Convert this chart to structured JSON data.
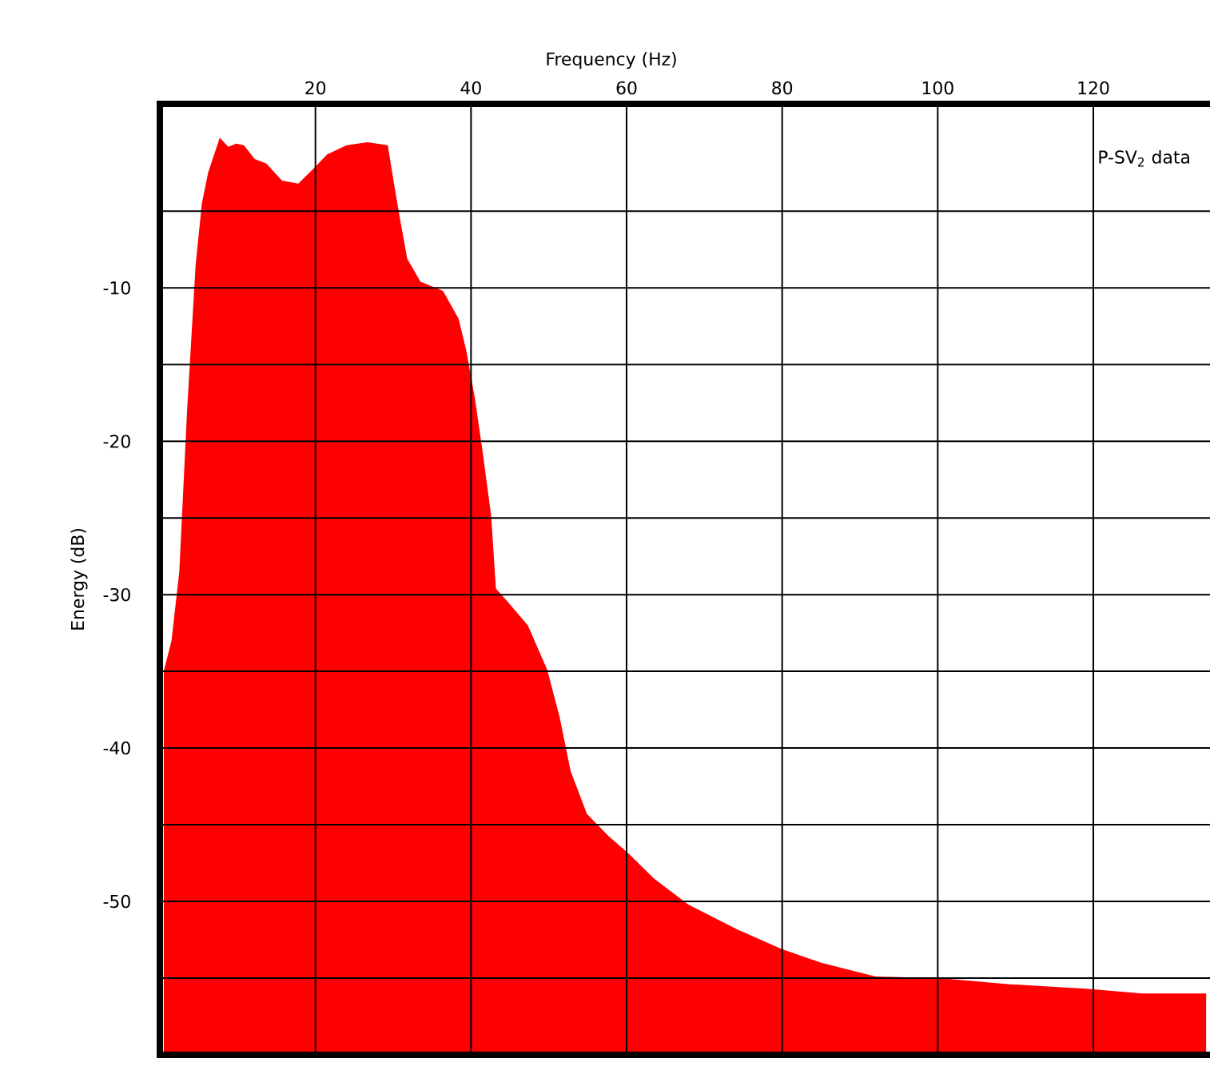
{
  "chart_data": {
    "type": "area",
    "xlabel": "Frequency (Hz)",
    "ylabel": "Energy (dB)",
    "annotations": [
      "P-SV$_{2}$ data"
    ],
    "color": "#ff0000",
    "xlim": [
      0,
      135
    ],
    "ylim": [
      -60,
      2
    ],
    "xticks": [
      20,
      40,
      60,
      80,
      100,
      120
    ],
    "yticks": [
      {
        "value": -55,
        "label": null
      },
      -50,
      {
        "value": -45,
        "label": null
      },
      -40,
      {
        "value": -35,
        "label": null
      },
      -30,
      {
        "value": -25,
        "label": null
      },
      -20,
      {
        "value": -15,
        "label": null
      },
      -10,
      {
        "value": -5,
        "label": null
      }
    ],
    "grid": true,
    "x": [
      0.5,
      1.5,
      2.5,
      3.5,
      4.6,
      5.4,
      6.2,
      7.7,
      8.8,
      9.8,
      10.8,
      12.2,
      13.7,
      15.7,
      17.8,
      19.8,
      21.5,
      24,
      26.7,
      29.3,
      30.1,
      30.8,
      31.8,
      33.5,
      36.4,
      38.4,
      39.4,
      40.5,
      41.5,
      42.6,
      43.2,
      44.6,
      47.3,
      49.8,
      51.4,
      52.8,
      54.9,
      57.6,
      60.3,
      63.5,
      67.9,
      74.1,
      79.9,
      85,
      92,
      100.3,
      109.2,
      119.4,
      126.3,
      134.5
    ],
    "values": [
      -35,
      -33,
      -28.5,
      -18,
      -8.5,
      -4.5,
      -2.5,
      -0.2,
      -0.8,
      -0.6,
      -0.7,
      -1.6,
      -1.9,
      -3.0,
      -3.2,
      -2.2,
      -1.3,
      -0.7,
      -0.5,
      -0.7,
      -3.2,
      -5.3,
      -8.1,
      -9.6,
      -10.2,
      -12,
      -14.1,
      -17.2,
      -20.7,
      -24.9,
      -29.6,
      -30.4,
      -32,
      -34.9,
      -38,
      -41.5,
      -44.3,
      -45.7,
      -46.9,
      -48.5,
      -50.2,
      -51.8,
      -53.1,
      -54,
      -54.9,
      -55,
      -55.4,
      -55.7,
      -56,
      -56
    ]
  }
}
